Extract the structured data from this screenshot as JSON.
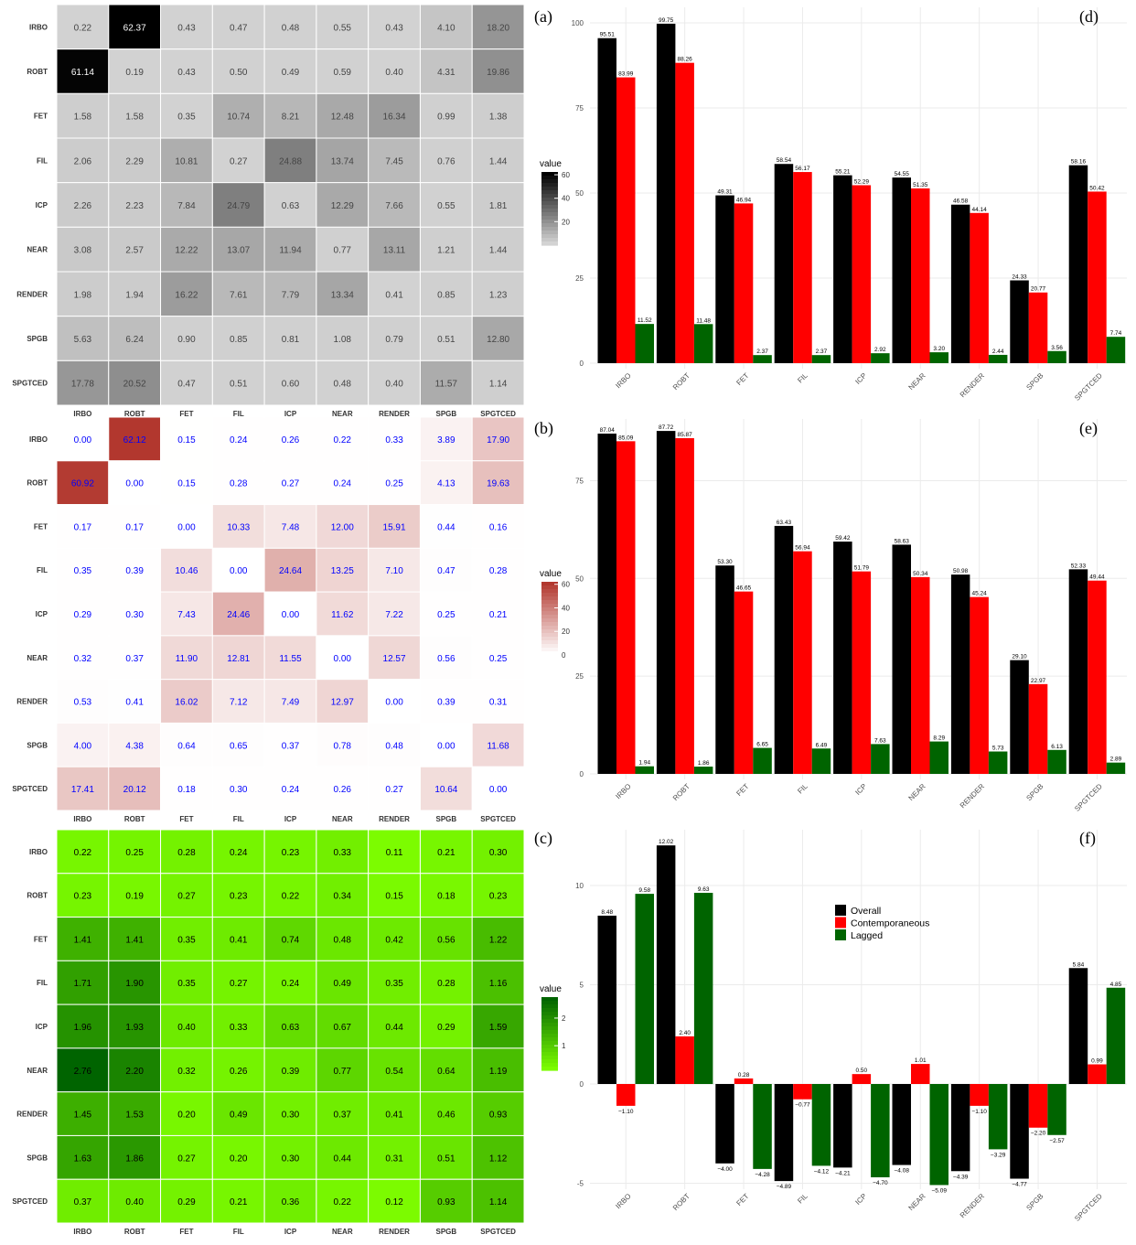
{
  "panel_tags": [
    "(a)",
    "(b)",
    "(c)",
    "(d)",
    "(e)",
    "(f)"
  ],
  "colors": {
    "overall": "#000000",
    "contemporaneous": "#ff0000",
    "lagged": "#006400",
    "heat_a_low": "#d3d3d3",
    "heat_a_high": "#000000",
    "heat_b_low": "#ffffff",
    "heat_b_high": "#b2372e",
    "heat_c_low": "#7cfc00",
    "heat_c_high": "#006400",
    "cell_text_b": "#0000ff"
  },
  "chart_data": [
    {
      "panel": "(a)",
      "type": "heatmap",
      "rows": [
        "IRBO",
        "ROBT",
        "FET",
        "FIL",
        "ICP",
        "NEAR",
        "RENDER",
        "SPGB",
        "SPGTCED"
      ],
      "columns": [
        "IRBO",
        "ROBT",
        "FET",
        "FIL",
        "ICP",
        "NEAR",
        "RENDER",
        "SPGB",
        "SPGTCED"
      ],
      "values": [
        [
          0.22,
          62.37,
          0.43,
          0.47,
          0.48,
          0.55,
          0.43,
          4.1,
          18.2
        ],
        [
          61.14,
          0.19,
          0.43,
          0.5,
          0.49,
          0.59,
          0.4,
          4.31,
          19.86
        ],
        [
          1.58,
          1.58,
          0.35,
          10.74,
          8.21,
          12.48,
          16.34,
          0.99,
          1.38
        ],
        [
          2.06,
          2.29,
          10.81,
          0.27,
          24.88,
          13.74,
          7.45,
          0.76,
          1.44
        ],
        [
          2.26,
          2.23,
          7.84,
          24.79,
          0.63,
          12.29,
          7.66,
          0.55,
          1.81
        ],
        [
          3.08,
          2.57,
          12.22,
          13.07,
          11.94,
          0.77,
          13.11,
          1.21,
          1.44
        ],
        [
          1.98,
          1.94,
          16.22,
          7.61,
          7.79,
          13.34,
          0.41,
          0.85,
          1.23
        ],
        [
          5.63,
          6.24,
          0.9,
          0.85,
          0.81,
          1.08,
          0.79,
          0.51,
          12.8
        ],
        [
          17.78,
          20.52,
          0.47,
          0.51,
          0.6,
          0.48,
          0.4,
          11.57,
          1.14
        ]
      ],
      "legend_title": "value",
      "legend_ticks": [
        20,
        40,
        60
      ],
      "range": [
        0,
        62.37
      ]
    },
    {
      "panel": "(b)",
      "type": "heatmap",
      "rows": [
        "IRBO",
        "ROBT",
        "FET",
        "FIL",
        "ICP",
        "NEAR",
        "RENDER",
        "SPGB",
        "SPGTCED"
      ],
      "columns": [
        "IRBO",
        "ROBT",
        "FET",
        "FIL",
        "ICP",
        "NEAR",
        "RENDER",
        "SPGB",
        "SPGTCED"
      ],
      "values": [
        [
          0.0,
          62.12,
          0.15,
          0.24,
          0.26,
          0.22,
          0.33,
          3.89,
          17.9
        ],
        [
          60.92,
          0.0,
          0.15,
          0.28,
          0.27,
          0.24,
          0.25,
          4.13,
          19.63
        ],
        [
          0.17,
          0.17,
          0.0,
          10.33,
          7.48,
          12.0,
          15.91,
          0.44,
          0.16
        ],
        [
          0.35,
          0.39,
          10.46,
          0.0,
          24.64,
          13.25,
          7.1,
          0.47,
          0.28
        ],
        [
          0.29,
          0.3,
          7.43,
          24.46,
          0.0,
          11.62,
          7.22,
          0.25,
          0.21
        ],
        [
          0.32,
          0.37,
          11.9,
          12.81,
          11.55,
          0.0,
          12.57,
          0.56,
          0.25
        ],
        [
          0.53,
          0.41,
          16.02,
          7.12,
          7.49,
          12.97,
          0.0,
          0.39,
          0.31
        ],
        [
          4.0,
          4.38,
          0.64,
          0.65,
          0.37,
          0.78,
          0.48,
          0.0,
          11.68
        ],
        [
          17.41,
          20.12,
          0.18,
          0.3,
          0.24,
          0.26,
          0.27,
          10.64,
          0.0
        ]
      ],
      "legend_title": "value",
      "legend_ticks": [
        0,
        20,
        40,
        60
      ],
      "range": [
        0,
        62.12
      ]
    },
    {
      "panel": "(c)",
      "type": "heatmap",
      "rows": [
        "IRBO",
        "ROBT",
        "FET",
        "FIL",
        "ICP",
        "NEAR",
        "RENDER",
        "SPGB",
        "SPGTCED"
      ],
      "columns": [
        "IRBO",
        "ROBT",
        "FET",
        "FIL",
        "ICP",
        "NEAR",
        "RENDER",
        "SPGB",
        "SPGTCED"
      ],
      "values": [
        [
          0.22,
          0.25,
          0.28,
          0.24,
          0.23,
          0.33,
          0.11,
          0.21,
          0.3
        ],
        [
          0.23,
          0.19,
          0.27,
          0.23,
          0.22,
          0.34,
          0.15,
          0.18,
          0.23
        ],
        [
          1.41,
          1.41,
          0.35,
          0.41,
          0.74,
          0.48,
          0.42,
          0.56,
          1.22
        ],
        [
          1.71,
          1.9,
          0.35,
          0.27,
          0.24,
          0.49,
          0.35,
          0.28,
          1.16
        ],
        [
          1.96,
          1.93,
          0.4,
          0.33,
          0.63,
          0.67,
          0.44,
          0.29,
          1.59
        ],
        [
          2.76,
          2.2,
          0.32,
          0.26,
          0.39,
          0.77,
          0.54,
          0.64,
          1.19
        ],
        [
          1.45,
          1.53,
          0.2,
          0.49,
          0.3,
          0.37,
          0.41,
          0.46,
          0.93
        ],
        [
          1.63,
          1.86,
          0.27,
          0.2,
          0.3,
          0.44,
          0.31,
          0.51,
          1.12
        ],
        [
          0.37,
          0.4,
          0.29,
          0.21,
          0.36,
          0.22,
          0.12,
          0.93,
          1.14
        ]
      ],
      "legend_title": "value",
      "legend_ticks": [
        1,
        2
      ],
      "range": [
        0.11,
        2.76
      ]
    },
    {
      "panel": "(d)",
      "type": "bar",
      "categories": [
        "IRBO",
        "ROBT",
        "FET",
        "FIL",
        "ICP",
        "NEAR",
        "RENDER",
        "SPGB",
        "SPGTCED"
      ],
      "series": [
        {
          "key": "overall",
          "values": [
            95.51,
            99.75,
            49.31,
            58.54,
            55.21,
            54.55,
            46.58,
            24.33,
            58.16
          ]
        },
        {
          "key": "contemporaneous",
          "values": [
            83.99,
            88.26,
            46.94,
            56.17,
            52.29,
            51.35,
            44.14,
            20.77,
            50.42
          ]
        },
        {
          "key": "lagged",
          "values": [
            11.52,
            11.48,
            2.37,
            2.37,
            2.92,
            3.2,
            2.44,
            3.56,
            7.74
          ]
        }
      ],
      "yticks": [
        0,
        25,
        50,
        75,
        100
      ],
      "ylim": [
        0,
        100
      ]
    },
    {
      "panel": "(e)",
      "type": "bar",
      "categories": [
        "IRBO",
        "ROBT",
        "FET",
        "FIL",
        "ICP",
        "NEAR",
        "RENDER",
        "SPGB",
        "SPGTCED"
      ],
      "series": [
        {
          "key": "overall",
          "values": [
            87.04,
            87.72,
            53.3,
            63.43,
            59.42,
            58.63,
            50.98,
            29.1,
            52.33
          ]
        },
        {
          "key": "contemporaneous",
          "values": [
            85.09,
            85.87,
            46.65,
            56.94,
            51.79,
            50.34,
            45.24,
            22.97,
            49.44
          ]
        },
        {
          "key": "lagged",
          "values": [
            1.94,
            1.86,
            6.65,
            6.49,
            7.63,
            8.29,
            5.73,
            6.13,
            2.89
          ]
        }
      ],
      "yticks": [
        0,
        25,
        50,
        75
      ],
      "ylim": [
        0,
        87.72
      ]
    },
    {
      "panel": "(f)",
      "type": "bar",
      "categories": [
        "IRBO",
        "ROBT",
        "FET",
        "FIL",
        "ICP",
        "NEAR",
        "RENDER",
        "SPGB",
        "SPGTCED"
      ],
      "series": [
        {
          "key": "overall",
          "name": "Overall",
          "values": [
            8.48,
            12.02,
            -4.0,
            -4.89,
            -4.21,
            -4.08,
            -4.39,
            -4.77,
            5.84
          ]
        },
        {
          "key": "contemporaneous",
          "name": "Contemporaneous",
          "values": [
            -1.1,
            2.4,
            0.28,
            -0.77,
            0.5,
            1.01,
            -1.1,
            -2.2,
            0.99
          ]
        },
        {
          "key": "lagged",
          "name": "Lagged",
          "values": [
            9.58,
            9.63,
            -4.28,
            -4.12,
            -4.7,
            -5.09,
            -3.29,
            -2.57,
            4.85
          ]
        }
      ],
      "yticks": [
        -5,
        0,
        5,
        10
      ],
      "ylim": [
        -5.09,
        12.02
      ],
      "legend": "top-center"
    }
  ]
}
